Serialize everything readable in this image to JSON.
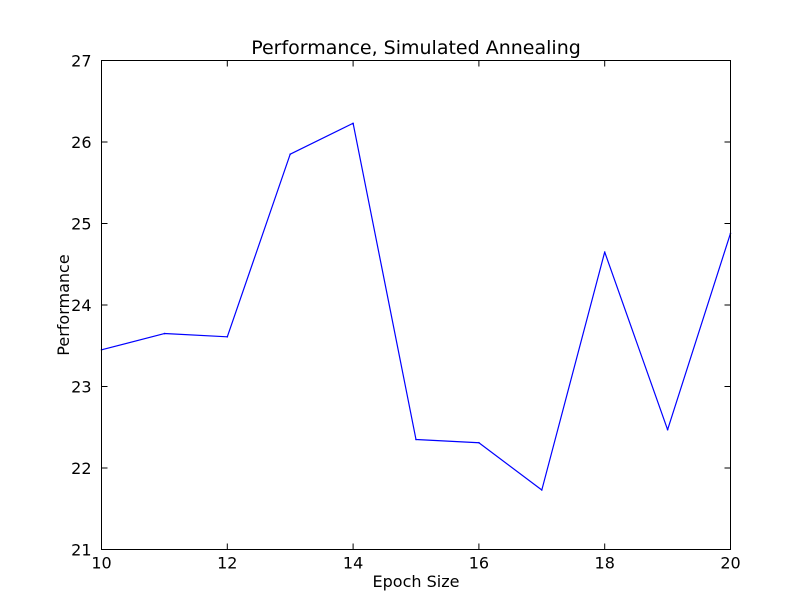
{
  "chart_data": {
    "type": "line",
    "title": "Performance, Simulated Annealing",
    "xlabel": "Epoch Size",
    "ylabel": "Performance",
    "xlim": [
      10,
      20
    ],
    "ylim": [
      21,
      27
    ],
    "xticks": [
      "10",
      "12",
      "14",
      "16",
      "18",
      "20"
    ],
    "yticks": [
      "21",
      "22",
      "23",
      "24",
      "25",
      "26",
      "27"
    ],
    "grid": false,
    "legend": "none",
    "series": [
      {
        "color": "#0000ff",
        "x": [
          10,
          11,
          12,
          13,
          14,
          15,
          16,
          17,
          18,
          19,
          20
        ],
        "y": [
          23.45,
          23.65,
          23.61,
          25.85,
          26.23,
          22.35,
          22.31,
          21.73,
          24.65,
          22.47,
          24.88
        ]
      }
    ]
  }
}
